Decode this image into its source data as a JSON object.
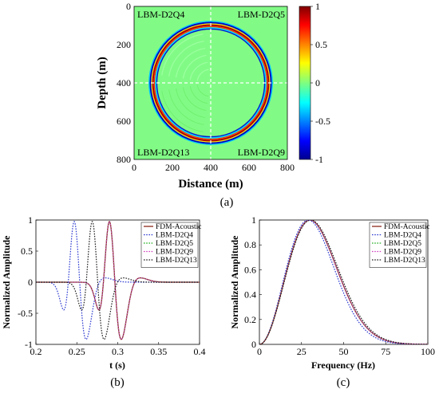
{
  "chart_data": [
    {
      "id": "a",
      "type": "heatmap",
      "panel_label": "(a)",
      "xlabel": "Distance (m)",
      "ylabel": "Depth (m)",
      "xlim": [
        0,
        800
      ],
      "ylim": [
        0,
        800
      ],
      "x_ticks": [
        "0",
        "200",
        "400",
        "600",
        "800"
      ],
      "y_ticks": [
        "0",
        "200",
        "400",
        "600",
        "800"
      ],
      "quadrant_labels": [
        "LBM-D2Q4",
        "LBM-D2Q5",
        "LBM-D2Q13",
        "LBM-D2Q9"
      ],
      "wavefront": {
        "center_x": 400,
        "center_y": 400,
        "radius": 300
      },
      "colorbar": {
        "range": [
          -1,
          1
        ],
        "ticks": [
          "1",
          "0.5",
          "0",
          "-0.5",
          "-1"
        ],
        "colors": [
          "#00008f",
          "#0000ff",
          "#00ffff",
          "#7fff7f",
          "#ffff00",
          "#ff0000",
          "#800000"
        ]
      }
    },
    {
      "id": "b",
      "type": "line",
      "panel_label": "(b)",
      "xlabel": "t (s)",
      "ylabel": "Normalized Amplitude",
      "xlim": [
        0.2,
        0.4
      ],
      "ylim": [
        -1,
        1
      ],
      "x_ticks": [
        "0.2",
        "0.25",
        "0.3",
        "0.35",
        "0.4"
      ],
      "y_ticks": [
        "1",
        "0.5",
        "0",
        "-0.5",
        "-1"
      ],
      "legend_position": "top-right",
      "series": [
        {
          "name": "FDM-Acoustic",
          "color": "#8b2a1a",
          "style": "solid",
          "t0": 0.29
        },
        {
          "name": "LBM-D2Q4",
          "color": "#2d3ad0",
          "style": "dotted",
          "t0": 0.247
        },
        {
          "name": "LBM-D2Q5",
          "color": "#20b020",
          "style": "dotted",
          "t0": 0.29
        },
        {
          "name": "LBM-D2Q9",
          "color": "#d040c0",
          "style": "dotted",
          "t0": 0.29
        },
        {
          "name": "LBM-D2Q13",
          "color": "#1e1e1e",
          "style": "dotted",
          "t0": 0.269
        }
      ]
    },
    {
      "id": "c",
      "type": "line",
      "panel_label": "(c)",
      "xlabel": "Frequency (Hz)",
      "ylabel": "Normalized Amplitude",
      "xlim": [
        0,
        100
      ],
      "ylim": [
        0,
        1
      ],
      "x_ticks": [
        "0",
        "25",
        "50",
        "75",
        "100"
      ],
      "y_ticks": [
        "1",
        "0.8",
        "0.6",
        "0.4",
        "0.2",
        "0"
      ],
      "legend_position": "top-right",
      "series": [
        {
          "name": "FDM-Acoustic",
          "color": "#8b2a1a",
          "style": "solid",
          "peak": 30.0
        },
        {
          "name": "LBM-D2Q4",
          "color": "#2d3ad0",
          "style": "dotted",
          "peak": 29.0
        },
        {
          "name": "LBM-D2Q5",
          "color": "#20b020",
          "style": "dotted",
          "peak": 30.0
        },
        {
          "name": "LBM-D2Q9",
          "color": "#d040c0",
          "style": "dotted",
          "peak": 30.0
        },
        {
          "name": "LBM-D2Q13",
          "color": "#1e1e1e",
          "style": "dotted",
          "peak": 30.5
        }
      ]
    }
  ]
}
